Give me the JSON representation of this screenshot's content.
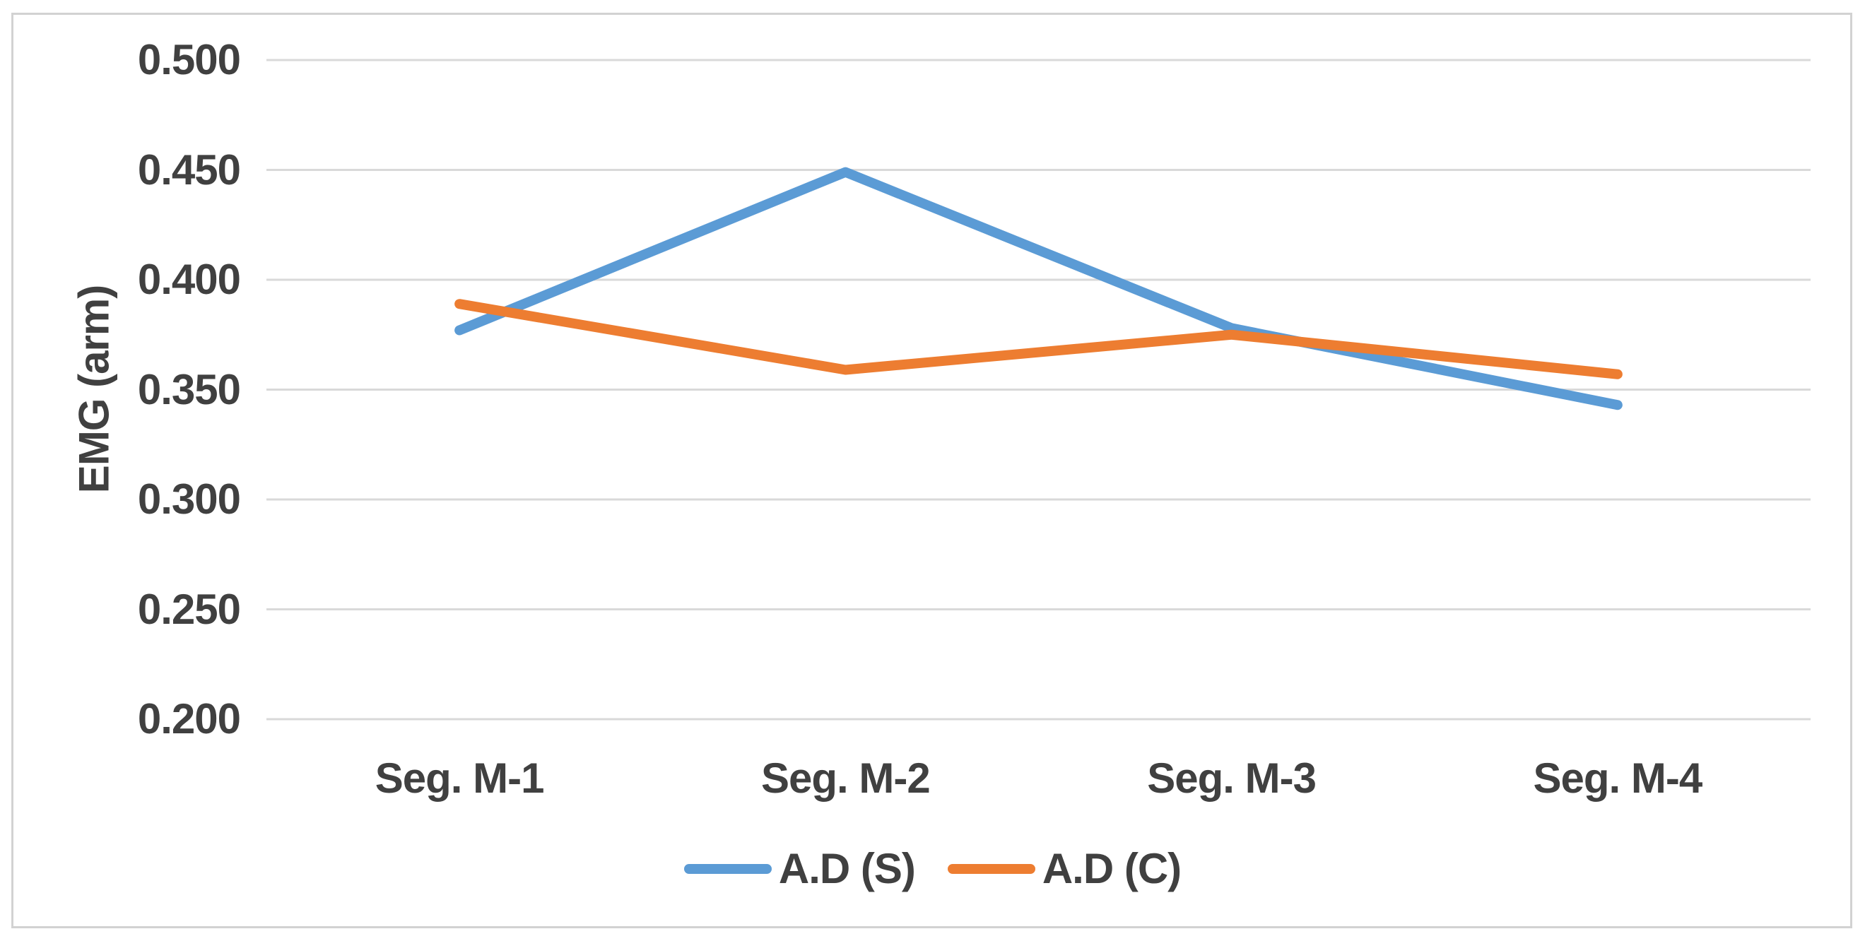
{
  "chart_data": {
    "type": "line",
    "title": "",
    "categories": [
      "Seg. M-1",
      "Seg. M-2",
      "Seg. M-3",
      "Seg. M-4"
    ],
    "series": [
      {
        "name": "A.D (S)",
        "color": "#5B9BD5",
        "values": [
          0.377,
          0.449,
          0.378,
          0.343
        ]
      },
      {
        "name": "A.D (C)",
        "color": "#ED7D31",
        "values": [
          0.389,
          0.359,
          0.375,
          0.357
        ]
      }
    ],
    "xlabel": "",
    "ylabel": "EMG (arm)",
    "ylim": [
      0.2,
      0.5
    ],
    "ytick_step": 0.05,
    "yticks": [
      "0.500",
      "0.450",
      "0.400",
      "0.350",
      "0.300",
      "0.250",
      "0.200"
    ],
    "ytick_values": [
      0.5,
      0.45,
      0.4,
      0.35,
      0.3,
      0.25,
      0.2
    ],
    "grid": true,
    "legend_position": "bottom-center",
    "colors": {
      "gridline": "#D9D9D9",
      "text": "#404040",
      "border": "#D2D2D2",
      "background": "#FFFFFF"
    }
  }
}
